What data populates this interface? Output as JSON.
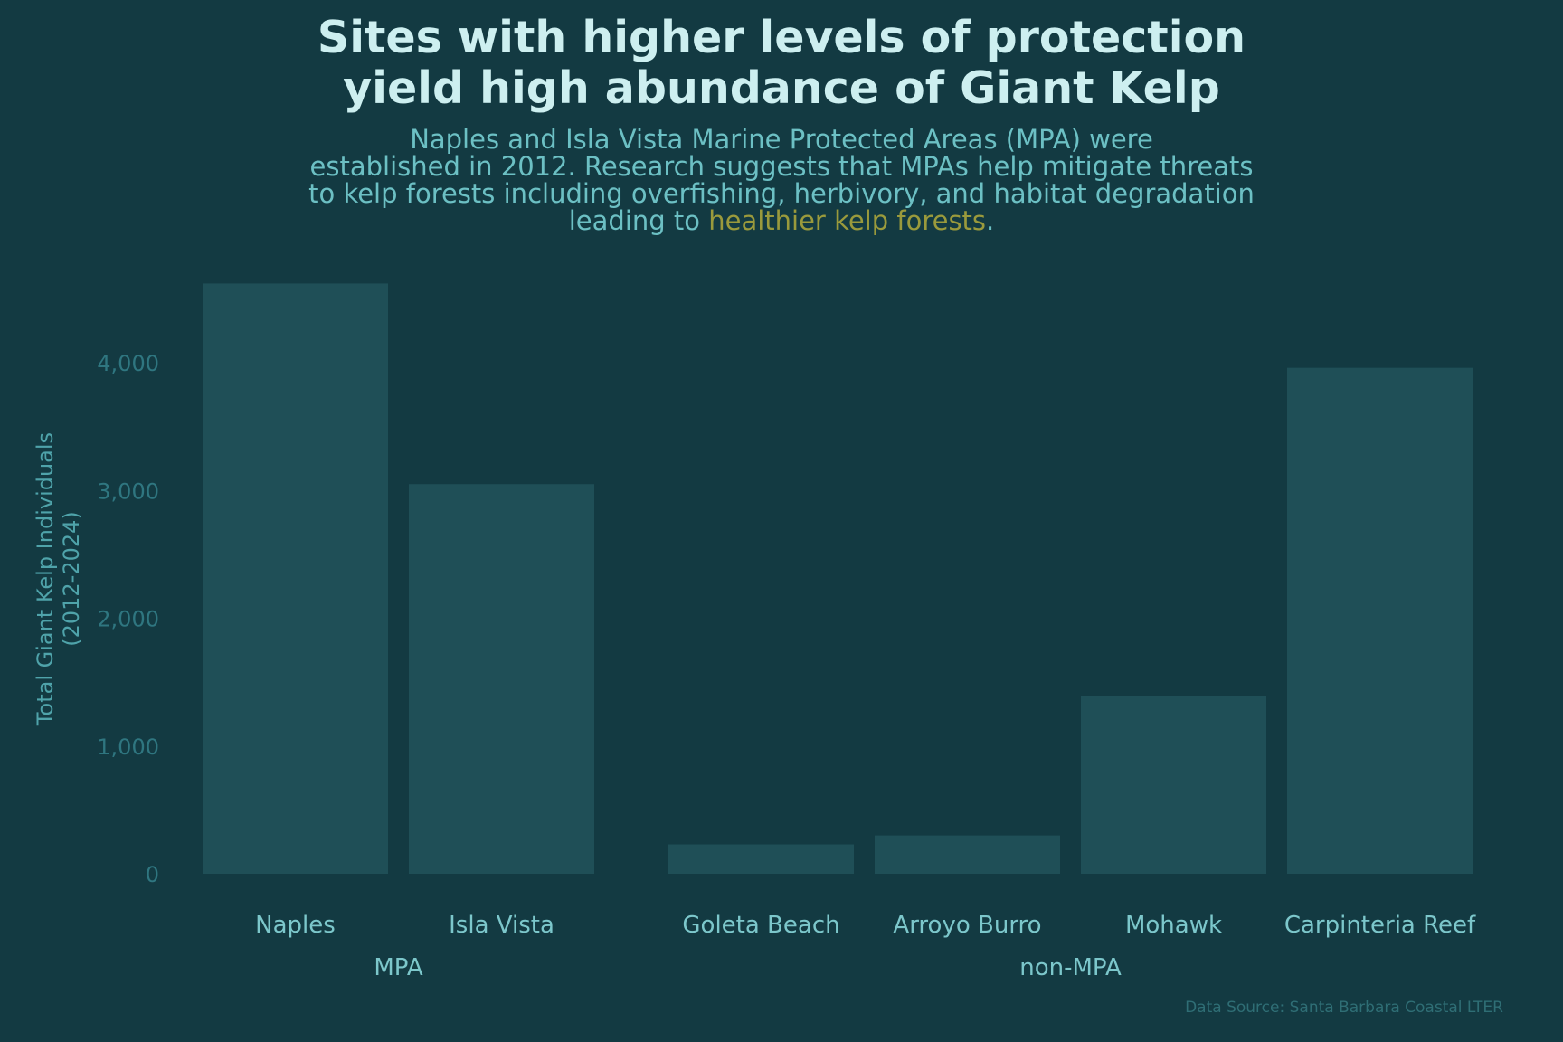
{
  "chart_data": {
    "type": "bar",
    "title_lines": [
      "Sites with higher levels of protection",
      "yield high abundance of Giant Kelp"
    ],
    "subtitle": {
      "lines": [
        "Naples and Isla Vista Marine Protected Areas (MPA) were",
        "established in 2012. Research suggests that MPAs help mitigate threats",
        "to kelp forests including overfishing, herbivory, and habitat degradation"
      ],
      "last_line_prefix": "leading to ",
      "highlight": "healthier kelp forests",
      "last_line_suffix": "."
    },
    "ylabel_lines": [
      "Total Giant Kelp Individuals",
      "(2012-2024)"
    ],
    "ylim": [
      0,
      4700
    ],
    "yticks": [
      0,
      1000,
      2000,
      3000,
      4000
    ],
    "ytick_labels": [
      "0",
      "1,000",
      "2,000",
      "3,000",
      "4,000"
    ],
    "grid": false,
    "groups": [
      {
        "name": "MPA",
        "categories": [
          "Naples",
          "Isla Vista"
        ],
        "values": [
          4620,
          3050
        ]
      },
      {
        "name": "non-MPA",
        "categories": [
          "Goleta Beach",
          "Arroyo Burro",
          "Mohawk",
          "Carpinteria Reef"
        ],
        "values": [
          230,
          300,
          1390,
          3960
        ]
      }
    ],
    "caption": "Data Source: Santa Barbara Coastal LTER",
    "colors": {
      "background": "#133a42",
      "bar": "#1f4f57",
      "title": "#cdeff0",
      "subtitle": "#6cc0c4",
      "highlight": "#9a9a3c",
      "tick_label": "#2f7680",
      "category_label": "#7cc7cb",
      "axis_label": "#4fa3aa",
      "caption": "#2f6e75"
    }
  }
}
